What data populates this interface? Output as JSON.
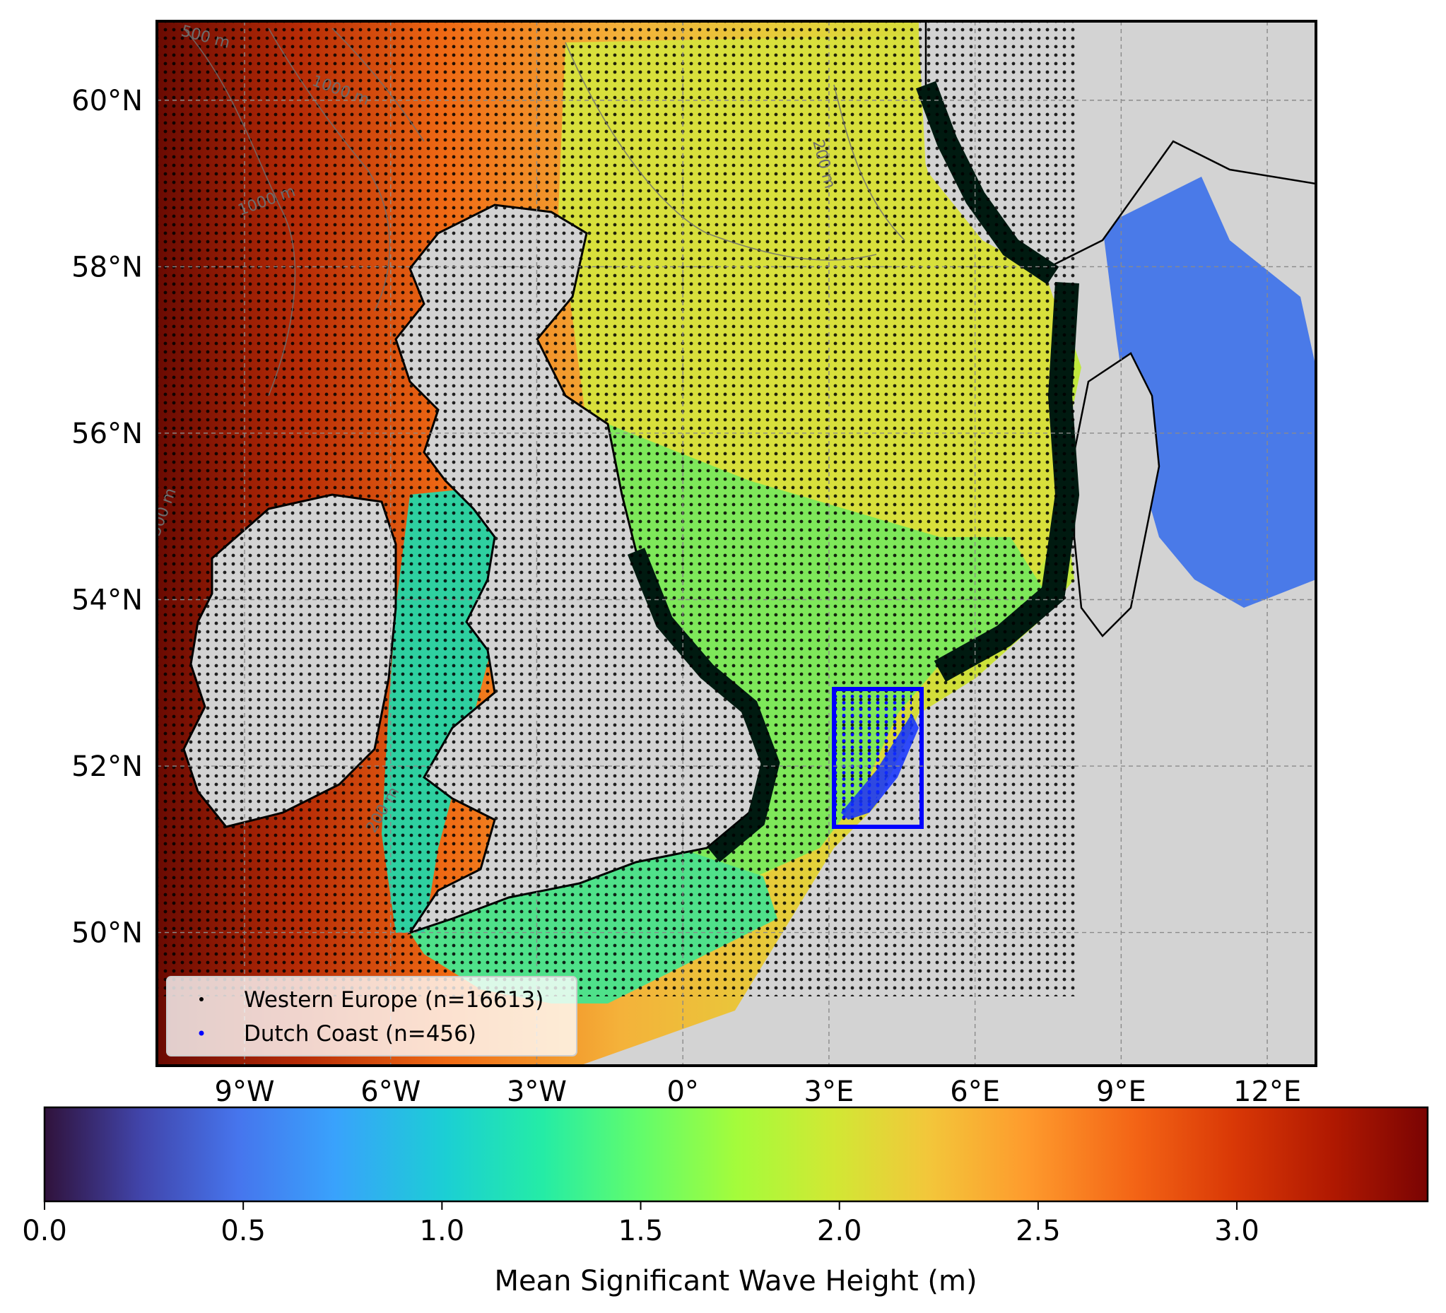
{
  "map": {
    "extent": {
      "lon_min": -10.8,
      "lon_max": 13.0,
      "lat_min": 48.4,
      "lat_max": 60.95
    },
    "lon_ticks": [
      {
        "value": -9,
        "label": "9°W"
      },
      {
        "value": -6,
        "label": "6°W"
      },
      {
        "value": -3,
        "label": "3°W"
      },
      {
        "value": 0,
        "label": "0°"
      },
      {
        "value": 3,
        "label": "3°E"
      },
      {
        "value": 6,
        "label": "6°E"
      },
      {
        "value": 9,
        "label": "9°E"
      },
      {
        "value": 12,
        "label": "12°E"
      }
    ],
    "lat_ticks": [
      {
        "value": 60,
        "label": "60°N"
      },
      {
        "value": 58,
        "label": "58°N"
      },
      {
        "value": 56,
        "label": "56°N"
      },
      {
        "value": 54,
        "label": "54°N"
      },
      {
        "value": 52,
        "label": "52°N"
      },
      {
        "value": 50,
        "label": "50°N"
      }
    ],
    "contour_labels": [
      "500 m",
      "1000 m",
      "200 m",
      "200 m",
      "1000 m",
      "500 m"
    ],
    "land_color": "#d3d3d3",
    "grid": true,
    "dutch_box": {
      "lon_min": 3.0,
      "lon_max": 4.8,
      "lat_min": 51.35,
      "lat_max": 53.05,
      "color": "#0000ff"
    }
  },
  "legend": {
    "placement": "lower-left",
    "items": [
      {
        "label": "Western Europe (n=16613)",
        "marker_color": "#000000"
      },
      {
        "label": "Dutch Coast (n=456)",
        "marker_color": "#0000ff"
      }
    ]
  },
  "colorbar": {
    "label": "Mean Significant Wave Height (m)",
    "colormap": "turbo",
    "vmin": 0.0,
    "vmax": 3.48,
    "ticks": [
      {
        "value": 0.0,
        "label": "0.0"
      },
      {
        "value": 0.5,
        "label": "0.5"
      },
      {
        "value": 1.0,
        "label": "1.0"
      },
      {
        "value": 1.5,
        "label": "1.5"
      },
      {
        "value": 2.0,
        "label": "2.0"
      },
      {
        "value": 2.5,
        "label": "2.5"
      },
      {
        "value": 3.0,
        "label": "3.0"
      }
    ]
  }
}
